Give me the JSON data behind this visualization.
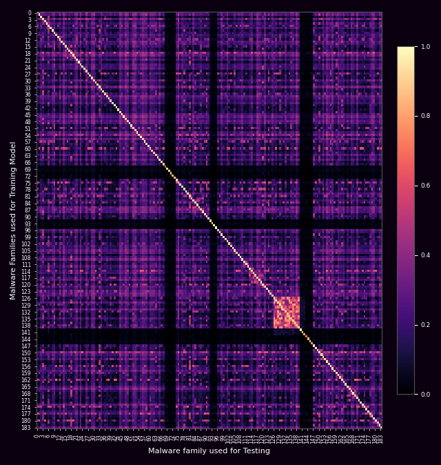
{
  "title": "",
  "xlabel": "Malware family used for Testing",
  "ylabel": "Malware Families used for Training Model",
  "colormap": "magma",
  "vmin": 0.0,
  "vmax": 1.0,
  "colorbar_ticks": [
    0.0,
    0.2,
    0.4,
    0.6,
    0.8,
    1.0
  ],
  "n_families": 184,
  "figsize": [
    6.4,
    6.74
  ],
  "dpi": 100,
  "tick_step": 3,
  "tick_fontsize": 5.5,
  "label_fontsize": 8,
  "axes_bg": "#0a0010",
  "fig_bg": "#0a0010",
  "spine_color": "#555555",
  "tick_color": "white",
  "label_color": "white",
  "cbar_label_color": "white",
  "row_stripe_seed": 1234,
  "matrix_seed": 99
}
